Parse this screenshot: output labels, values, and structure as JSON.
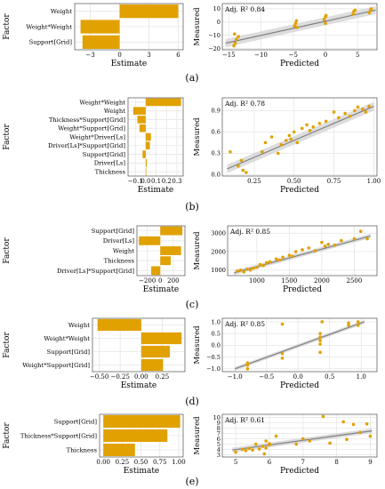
{
  "colors": {
    "bar": "#E1A100",
    "point": "#E1A100",
    "line": "#808080",
    "band": "#CFCFCF",
    "grid": "#E6E6E6",
    "frame": "#333333"
  },
  "chart_data": [
    {
      "id": "a",
      "panel_label": "(a)",
      "type": "bar",
      "orientation": "horizontal",
      "ylabel": "Factor",
      "xlabel": "Estimate",
      "categories": [
        "Weight",
        "Weight*Weight",
        "Support[Grid]"
      ],
      "values": [
        6.0,
        -4.0,
        -3.8
      ],
      "xlim": [
        -4.6,
        6.5
      ],
      "xticks": [
        -3,
        0,
        3,
        6
      ],
      "xtick_labels": [
        "−3",
        "0",
        "3",
        "6"
      ]
    },
    {
      "id": "a",
      "type": "scatter",
      "xlabel": "Predicted",
      "ylabel": "Measured",
      "annotation": "Adj. R² 0.84",
      "xlim": [
        -16,
        8
      ],
      "ylim": [
        -21,
        14
      ],
      "xticks": [
        -15,
        -10,
        -5,
        0,
        5
      ],
      "xtick_labels": [
        "−15",
        "−10",
        "−5",
        "0",
        "5"
      ],
      "yticks": [
        -20,
        -10,
        0,
        10
      ],
      "ytick_labels": [
        "−20",
        "−10",
        "0",
        "10"
      ],
      "points": [
        [
          -14.2,
          -18
        ],
        [
          -14,
          -16
        ],
        [
          -13.8,
          -13
        ],
        [
          -13.5,
          -11
        ],
        [
          -14.1,
          -9
        ],
        [
          -4.8,
          -3
        ],
        [
          -4.6,
          -1
        ],
        [
          -4.5,
          1
        ],
        [
          -4.4,
          -4
        ],
        [
          -0.2,
          2
        ],
        [
          0,
          4
        ],
        [
          0.1,
          5
        ],
        [
          0,
          -1
        ],
        [
          4.3,
          6
        ],
        [
          4.4,
          8
        ],
        [
          4.6,
          9
        ],
        [
          6.8,
          7
        ],
        [
          7,
          9
        ],
        [
          7.1,
          10
        ]
      ],
      "fit": [
        -15.5,
        -16,
        7.8,
        9
      ],
      "band_halfwidth": 3
    },
    {
      "id": "b",
      "panel_label": "(b)",
      "type": "bar",
      "orientation": "horizontal",
      "ylabel": "Factor",
      "xlabel": "Estimate",
      "categories": [
        "Weight*Weight",
        "Weight",
        "Thickness*Support[Grid]",
        "Weight*Support[Grid]",
        "Weight*Driver[Ls]",
        "Driver[Ls]*Support[Grid]",
        "Support[Grid]",
        "Driver[Ls]",
        "Thickness"
      ],
      "values": [
        0.34,
        -0.12,
        -0.08,
        -0.06,
        0.05,
        0.04,
        -0.03,
        0.01,
        0.005
      ],
      "xlim": [
        -0.17,
        0.36
      ],
      "xticks": [
        -0.1,
        0.0,
        0.1,
        0.2,
        0.3
      ],
      "xtick_labels": [
        "−0.1",
        "0.0",
        "0.1",
        "0.2",
        "0.3"
      ]
    },
    {
      "id": "b",
      "type": "scatter",
      "xlabel": "Predicted",
      "ylabel": "Measured",
      "annotation": "Adj. R² 0.78",
      "xlim": [
        0.05,
        1.02
      ],
      "ylim": [
        -0.02,
        1.08
      ],
      "xticks": [
        0.25,
        0.5,
        0.75,
        1.0
      ],
      "xtick_labels": [
        "0.25",
        "0.50",
        "0.75",
        "1.00"
      ],
      "yticks": [
        0.0,
        0.3,
        0.6,
        0.9
      ],
      "ytick_labels": [
        "0.0",
        "0.3",
        "0.6",
        "0.9"
      ],
      "points": [
        [
          0.1,
          0.32
        ],
        [
          0.15,
          0.12
        ],
        [
          0.18,
          0.06
        ],
        [
          0.2,
          0.03
        ],
        [
          0.17,
          0.2
        ],
        [
          0.3,
          0.32
        ],
        [
          0.32,
          0.45
        ],
        [
          0.36,
          0.53
        ],
        [
          0.4,
          0.3
        ],
        [
          0.42,
          0.42
        ],
        [
          0.45,
          0.48
        ],
        [
          0.47,
          0.55
        ],
        [
          0.48,
          0.5
        ],
        [
          0.5,
          0.6
        ],
        [
          0.52,
          0.45
        ],
        [
          0.55,
          0.65
        ],
        [
          0.58,
          0.7
        ],
        [
          0.6,
          0.62
        ],
        [
          0.62,
          0.67
        ],
        [
          0.66,
          0.72
        ],
        [
          0.7,
          0.75
        ],
        [
          0.75,
          0.88
        ],
        [
          0.78,
          0.8
        ],
        [
          0.82,
          0.86
        ],
        [
          0.85,
          0.82
        ],
        [
          0.88,
          0.9
        ],
        [
          0.9,
          0.95
        ],
        [
          0.93,
          0.92
        ],
        [
          0.95,
          0.88
        ],
        [
          0.97,
          0.96
        ]
      ],
      "fit": [
        0.08,
        0.08,
        1.0,
        0.96
      ],
      "band_halfwidth": 0.06
    },
    {
      "id": "c",
      "panel_label": "(c)",
      "type": "bar",
      "orientation": "horizontal",
      "ylabel": "Factor",
      "xlabel": "Estimate",
      "categories": [
        "Support[Grid]",
        "Driver[Ls]",
        "Weight",
        "Thickness",
        "Driver[Ls]*Support[Grid]"
      ],
      "values": [
        340,
        -330,
        320,
        160,
        -140
      ],
      "xlim": [
        -360,
        380
      ],
      "xticks": [
        -200,
        0,
        200
      ],
      "xtick_labels": [
        "−200",
        "0",
        "200"
      ]
    },
    {
      "id": "c",
      "type": "scatter",
      "xlabel": "Predicted",
      "ylabel": "Measured",
      "annotation": "Adj. R² 0.85",
      "xlim": [
        550,
        2850
      ],
      "ylim": [
        700,
        3400
      ],
      "xticks": [
        1000,
        1500,
        2000,
        2500
      ],
      "xtick_labels": [
        "1000",
        "1500",
        "2000",
        "2500"
      ],
      "yticks": [
        1000,
        2000,
        3000
      ],
      "ytick_labels": [
        "1000",
        "2000",
        "3000"
      ],
      "points": [
        [
          700,
          950
        ],
        [
          750,
          1000
        ],
        [
          800,
          900
        ],
        [
          850,
          1050
        ],
        [
          900,
          1000
        ],
        [
          950,
          1100
        ],
        [
          1000,
          1150
        ],
        [
          1050,
          1300
        ],
        [
          1100,
          1250
        ],
        [
          1150,
          1400
        ],
        [
          1200,
          1450
        ],
        [
          1300,
          1600
        ],
        [
          1350,
          1550
        ],
        [
          1400,
          1700
        ],
        [
          1500,
          1800
        ],
        [
          1550,
          1750
        ],
        [
          1600,
          2000
        ],
        [
          1700,
          2100
        ],
        [
          1800,
          2200
        ],
        [
          1900,
          2050
        ],
        [
          2000,
          2500
        ],
        [
          2050,
          2300
        ],
        [
          2100,
          2400
        ],
        [
          2200,
          2350
        ],
        [
          2300,
          2600
        ],
        [
          2500,
          2700
        ],
        [
          2600,
          3100
        ],
        [
          2700,
          2700
        ]
      ],
      "fit": [
        650,
        850,
        2750,
        2850
      ],
      "band_halfwidth": 120
    },
    {
      "id": "d",
      "panel_label": "(d)",
      "type": "bar",
      "orientation": "horizontal",
      "ylabel": "Factor",
      "xlabel": "Estimate",
      "categories": [
        "Weight",
        "Weight*Weight",
        "Support[Grid]",
        "Weight*Support[Grid]"
      ],
      "values": [
        -0.52,
        0.48,
        0.34,
        0.26
      ],
      "xlim": [
        -0.58,
        0.52
      ],
      "xticks": [
        -0.5,
        -0.25,
        0.0,
        0.25
      ],
      "xtick_labels": [
        "−0.50",
        "−0.25",
        "0.00",
        "0.25"
      ]
    },
    {
      "id": "d",
      "type": "scatter",
      "xlabel": "Predicted",
      "ylabel": "Measured",
      "annotation": "Adj. R² 0.85",
      "xlim": [
        -1.2,
        1.25
      ],
      "ylim": [
        -1.12,
        1.15
      ],
      "xticks": [
        -1.0,
        -0.5,
        0.0,
        0.5,
        1.0
      ],
      "xtick_labels": [
        "−1.0",
        "−0.5",
        "0.0",
        "0.5",
        "1.0"
      ],
      "yticks": [
        -1.0,
        -0.5,
        0.0,
        0.5,
        1.0
      ],
      "ytick_labels": [
        "−1.0",
        "−0.5",
        "0.0",
        "0.5",
        "1.0"
      ],
      "points": [
        [
          -0.8,
          -1.0
        ],
        [
          -0.8,
          -0.85
        ],
        [
          -0.8,
          -0.75
        ],
        [
          -0.25,
          -0.55
        ],
        [
          -0.25,
          -0.35
        ],
        [
          -0.25,
          0.9
        ],
        [
          0.35,
          -0.3
        ],
        [
          0.35,
          0.05
        ],
        [
          0.35,
          0.2
        ],
        [
          0.35,
          0.35
        ],
        [
          0.35,
          0.5
        ],
        [
          0.38,
          1.0
        ],
        [
          0.8,
          0.85
        ],
        [
          0.8,
          0.95
        ],
        [
          0.95,
          1.0
        ],
        [
          0.95,
          0.85
        ]
      ],
      "fit": [
        -1.0,
        -1.0,
        1.05,
        1.0
      ],
      "band_halfwidth": 0.08
    },
    {
      "id": "e",
      "panel_label": "(e)",
      "type": "bar",
      "orientation": "horizontal",
      "ylabel": "Factor",
      "xlabel": "Estimate",
      "categories": [
        "Support[Grid]",
        "Thickness*Support[Grid]",
        "Thickness"
      ],
      "values": [
        1.02,
        0.85,
        0.42
      ],
      "xlim": [
        -0.05,
        1.06
      ],
      "xticks": [
        0.0,
        0.25,
        0.5,
        0.75,
        1.0
      ],
      "xtick_labels": [
        "0.00",
        "0.25",
        "0.50",
        "0.75",
        "1.00"
      ]
    },
    {
      "id": "e",
      "type": "scatter",
      "xlabel": "Predicted",
      "ylabel": "Measured",
      "annotation": "Adj. R² 0.61",
      "xlim": [
        4.6,
        9.2
      ],
      "ylim": [
        2.6,
        10.6
      ],
      "xticks": [
        5,
        6,
        7,
        8,
        9
      ],
      "xtick_labels": [
        "5",
        "6",
        "7",
        "8",
        "9"
      ],
      "yticks": [
        3,
        4,
        5,
        6,
        7,
        8,
        9,
        10
      ],
      "ytick_labels": [
        "3",
        "4",
        "5",
        "6",
        "7",
        "8",
        "9",
        "10"
      ],
      "points": [
        [
          5.0,
          3.5
        ],
        [
          5.2,
          4.0
        ],
        [
          5.3,
          3.8
        ],
        [
          5.4,
          4.2
        ],
        [
          5.5,
          3.9
        ],
        [
          5.6,
          5.0
        ],
        [
          5.7,
          4.1
        ],
        [
          5.8,
          4.6
        ],
        [
          5.85,
          3.2
        ],
        [
          5.9,
          4.3
        ],
        [
          5.9,
          5.6
        ],
        [
          6.0,
          4.9
        ],
        [
          6.0,
          5.1
        ],
        [
          6.2,
          6.5
        ],
        [
          6.8,
          5.0
        ],
        [
          7.0,
          6.0
        ],
        [
          7.2,
          5.6
        ],
        [
          7.6,
          10.2
        ],
        [
          7.8,
          5.2
        ],
        [
          8.2,
          9.2
        ],
        [
          8.3,
          5.9
        ],
        [
          8.5,
          8.7
        ],
        [
          8.7,
          7.2
        ],
        [
          8.9,
          8.8
        ],
        [
          9.0,
          6.5
        ]
      ],
      "fit": [
        4.9,
        3.9,
        9.05,
        7.5
      ],
      "band_halfwidth": 0.45
    }
  ]
}
